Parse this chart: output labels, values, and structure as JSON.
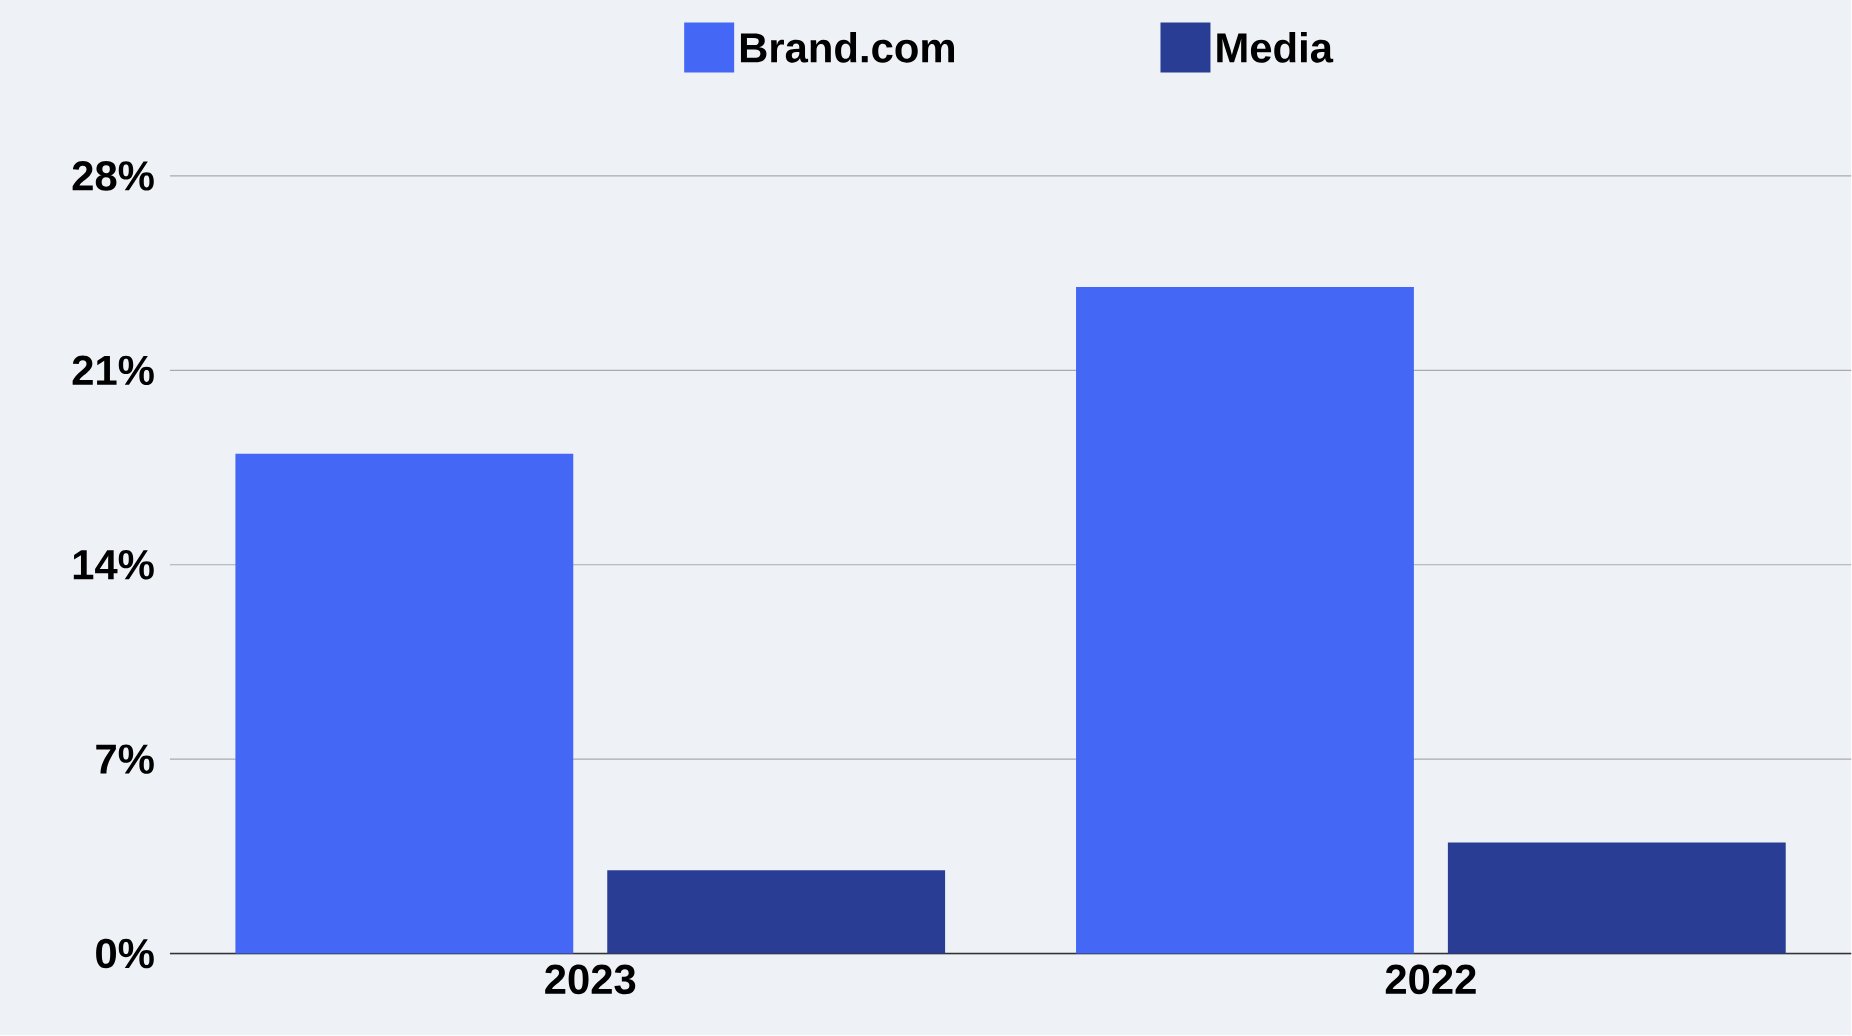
{
  "chart_data": {
    "type": "bar",
    "categories": [
      "2023",
      "2022"
    ],
    "series": [
      {
        "name": "Brand.com",
        "color": "#4468f5",
        "values": [
          18,
          24
        ]
      },
      {
        "name": "Media",
        "color": "#283d93",
        "values": [
          3,
          4
        ]
      }
    ],
    "ylim": [
      0,
      28
    ],
    "yticks": [
      {
        "value": 0,
        "label": "0%"
      },
      {
        "value": 7,
        "label": "7%"
      },
      {
        "value": 14,
        "label": "14%"
      },
      {
        "value": 21,
        "label": "21%"
      },
      {
        "value": 28,
        "label": "28%"
      }
    ],
    "grid": "y",
    "legend": "top"
  }
}
